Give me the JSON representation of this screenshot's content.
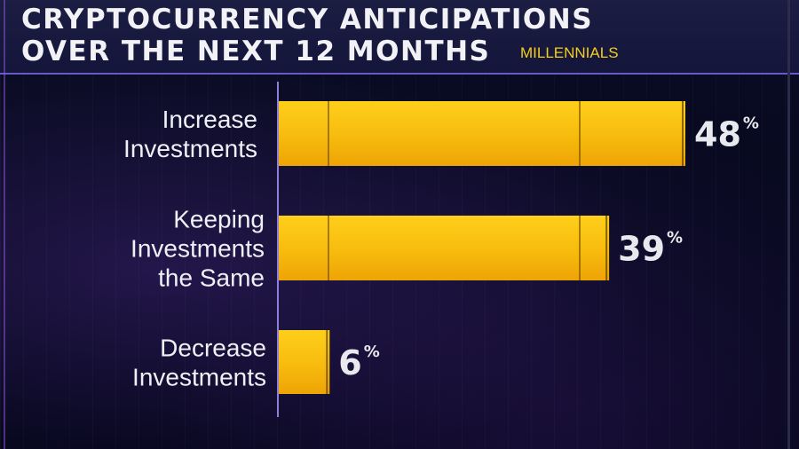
{
  "chart_data": {
    "type": "bar",
    "orientation": "horizontal",
    "title_line1": "CRYPTOCURRENCY ANTICIPATIONS",
    "title_line2": "OVER THE NEXT 12 MONTHS",
    "subtitle": "MILLENNIALS",
    "categories": [
      [
        "Increase",
        "Investments"
      ],
      [
        "Keeping",
        "Investments",
        "the Same"
      ],
      [
        "Decrease",
        "Investments"
      ]
    ],
    "values": [
      48,
      39,
      6
    ],
    "value_suffix": "%",
    "xlim": [
      0,
      48
    ],
    "colors": {
      "bar": "#f3b20c",
      "bar_highlight": "#ffd21e",
      "bar_dark": "#e29a00"
    }
  }
}
